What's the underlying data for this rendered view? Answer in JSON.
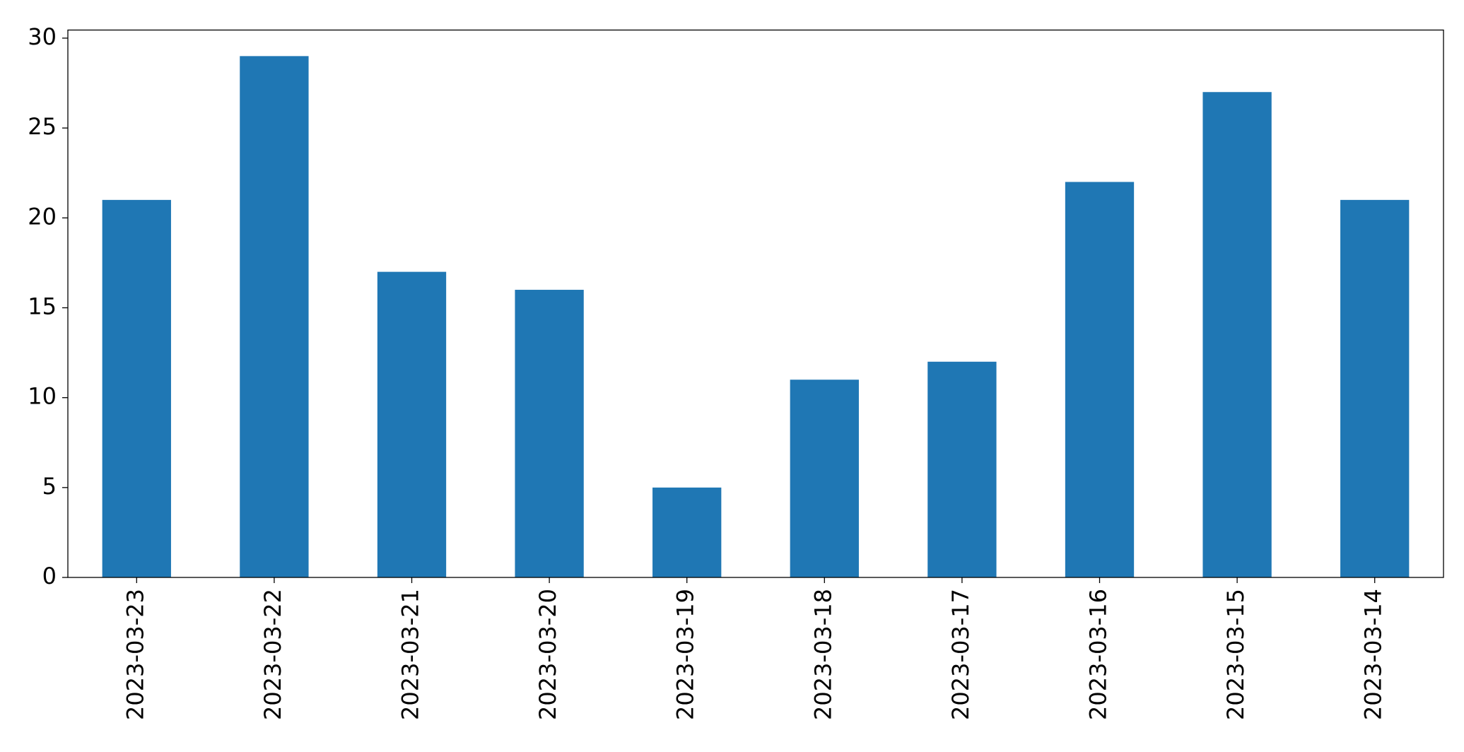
{
  "chart_data": {
    "type": "bar",
    "categories": [
      "2023-03-23",
      "2023-03-22",
      "2023-03-21",
      "2023-03-20",
      "2023-03-19",
      "2023-03-18",
      "2023-03-17",
      "2023-03-16",
      "2023-03-15",
      "2023-03-14"
    ],
    "values": [
      21,
      29,
      17,
      16,
      5,
      11,
      12,
      22,
      27,
      21
    ],
    "color": "#1f77b4",
    "ylim": [
      0,
      30.45
    ],
    "yticks": [
      0,
      5,
      10,
      15,
      20,
      25,
      30
    ],
    "grid": false
  }
}
